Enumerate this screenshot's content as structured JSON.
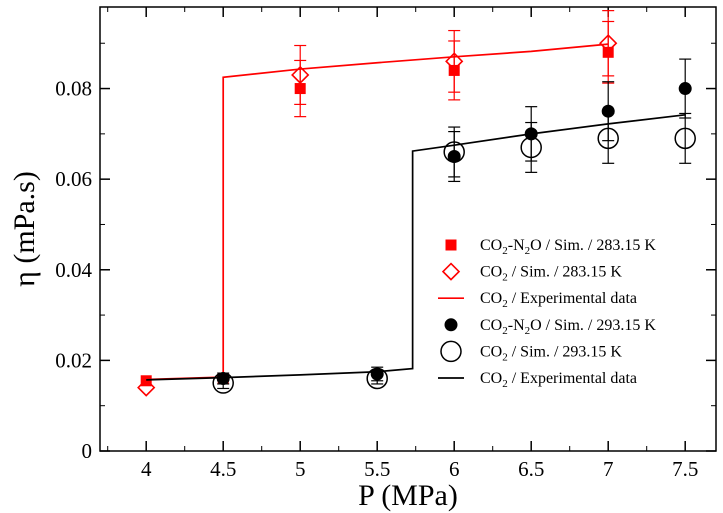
{
  "chart_data": {
    "type": "scatter",
    "title": "",
    "xlabel": "P (MPa)",
    "ylabel": "η (mPa.s)",
    "xlim": [
      3.7,
      7.7
    ],
    "ylim": [
      0,
      0.098
    ],
    "xticks": [
      "4",
      "4.5",
      "5",
      "5.5",
      "6",
      "6.5",
      "7",
      "7.5"
    ],
    "yticks": [
      "0",
      "0.02",
      "0.04",
      "0.06",
      "0.08"
    ],
    "legend_position": "center-right",
    "grid": false,
    "series": [
      {
        "name": "CO2-N2O / Sim. / 283.15 K",
        "legend_label": {
          "base": "CO",
          "sub1": "2",
          "mid": "-N",
          "sub2": "2",
          "tail": "O / Sim. / 283.15 K"
        },
        "marker": "square-filled",
        "color": "#ff0000",
        "x": [
          4,
          4.5,
          5,
          6,
          7
        ],
        "y": [
          0.0155,
          0.016,
          0.08,
          0.084,
          0.088
        ],
        "err": [
          0.0,
          0.0,
          0.0062,
          0.0065,
          0.0068
        ]
      },
      {
        "name": "CO2 / Sim. / 283.15 K",
        "legend_label": {
          "base": "CO",
          "sub1": "2",
          "tail": " / Sim. / 283.15 K"
        },
        "marker": "diamond-open",
        "color": "#ff0000",
        "x": [
          4,
          5,
          6,
          7
        ],
        "y": [
          0.014,
          0.083,
          0.086,
          0.09
        ],
        "err": [
          0.0,
          0.0065,
          0.0068,
          0.0072
        ]
      },
      {
        "name": "CO2 / Experimental data",
        "legend_label": {
          "base": "CO",
          "sub1": "2",
          "tail": " / Experimental data"
        },
        "marker": "line",
        "color": "#ff0000",
        "x": [
          4,
          4.5,
          4.5,
          5,
          5.5,
          6,
          6.5,
          7
        ],
        "y": [
          0.0158,
          0.0163,
          0.0825,
          0.0843,
          0.0857,
          0.087,
          0.0882,
          0.0898
        ]
      },
      {
        "name": "CO2-N2O / Sim. / 293.15 K",
        "legend_label": {
          "base": "CO",
          "sub1": "2",
          "mid": "-N",
          "sub2": "2",
          "tail": "O / Sim. / 293.15 K"
        },
        "marker": "circle-filled",
        "color": "#000000",
        "x": [
          4.5,
          5.5,
          6,
          6.5,
          7,
          7.5
        ],
        "y": [
          0.016,
          0.017,
          0.065,
          0.07,
          0.075,
          0.08
        ],
        "err": [
          0.0012,
          0.0015,
          0.0055,
          0.006,
          0.0065,
          0.0065
        ]
      },
      {
        "name": "CO2 / Sim. / 293.15 K",
        "legend_label": {
          "base": "CO",
          "sub1": "2",
          "tail": " / Sim. / 293.15 K"
        },
        "marker": "circle-open",
        "color": "#000000",
        "x": [
          4.5,
          5.5,
          6,
          6.5,
          7,
          7.5
        ],
        "y": [
          0.015,
          0.016,
          0.066,
          0.067,
          0.069,
          0.069
        ],
        "err": [
          0.0012,
          0.0012,
          0.0055,
          0.0055,
          0.0055,
          0.0055
        ]
      },
      {
        "name": "CO2 / Experimental data",
        "legend_label": {
          "base": "CO",
          "sub1": "2",
          "tail": " / Experimental data"
        },
        "marker": "line",
        "color": "#000000",
        "x": [
          4,
          4.5,
          5,
          5.5,
          5.73,
          5.73,
          6,
          6.5,
          7,
          7.5
        ],
        "y": [
          0.0157,
          0.0162,
          0.0168,
          0.0175,
          0.0182,
          0.0662,
          0.0675,
          0.07,
          0.0722,
          0.0742
        ]
      }
    ]
  }
}
